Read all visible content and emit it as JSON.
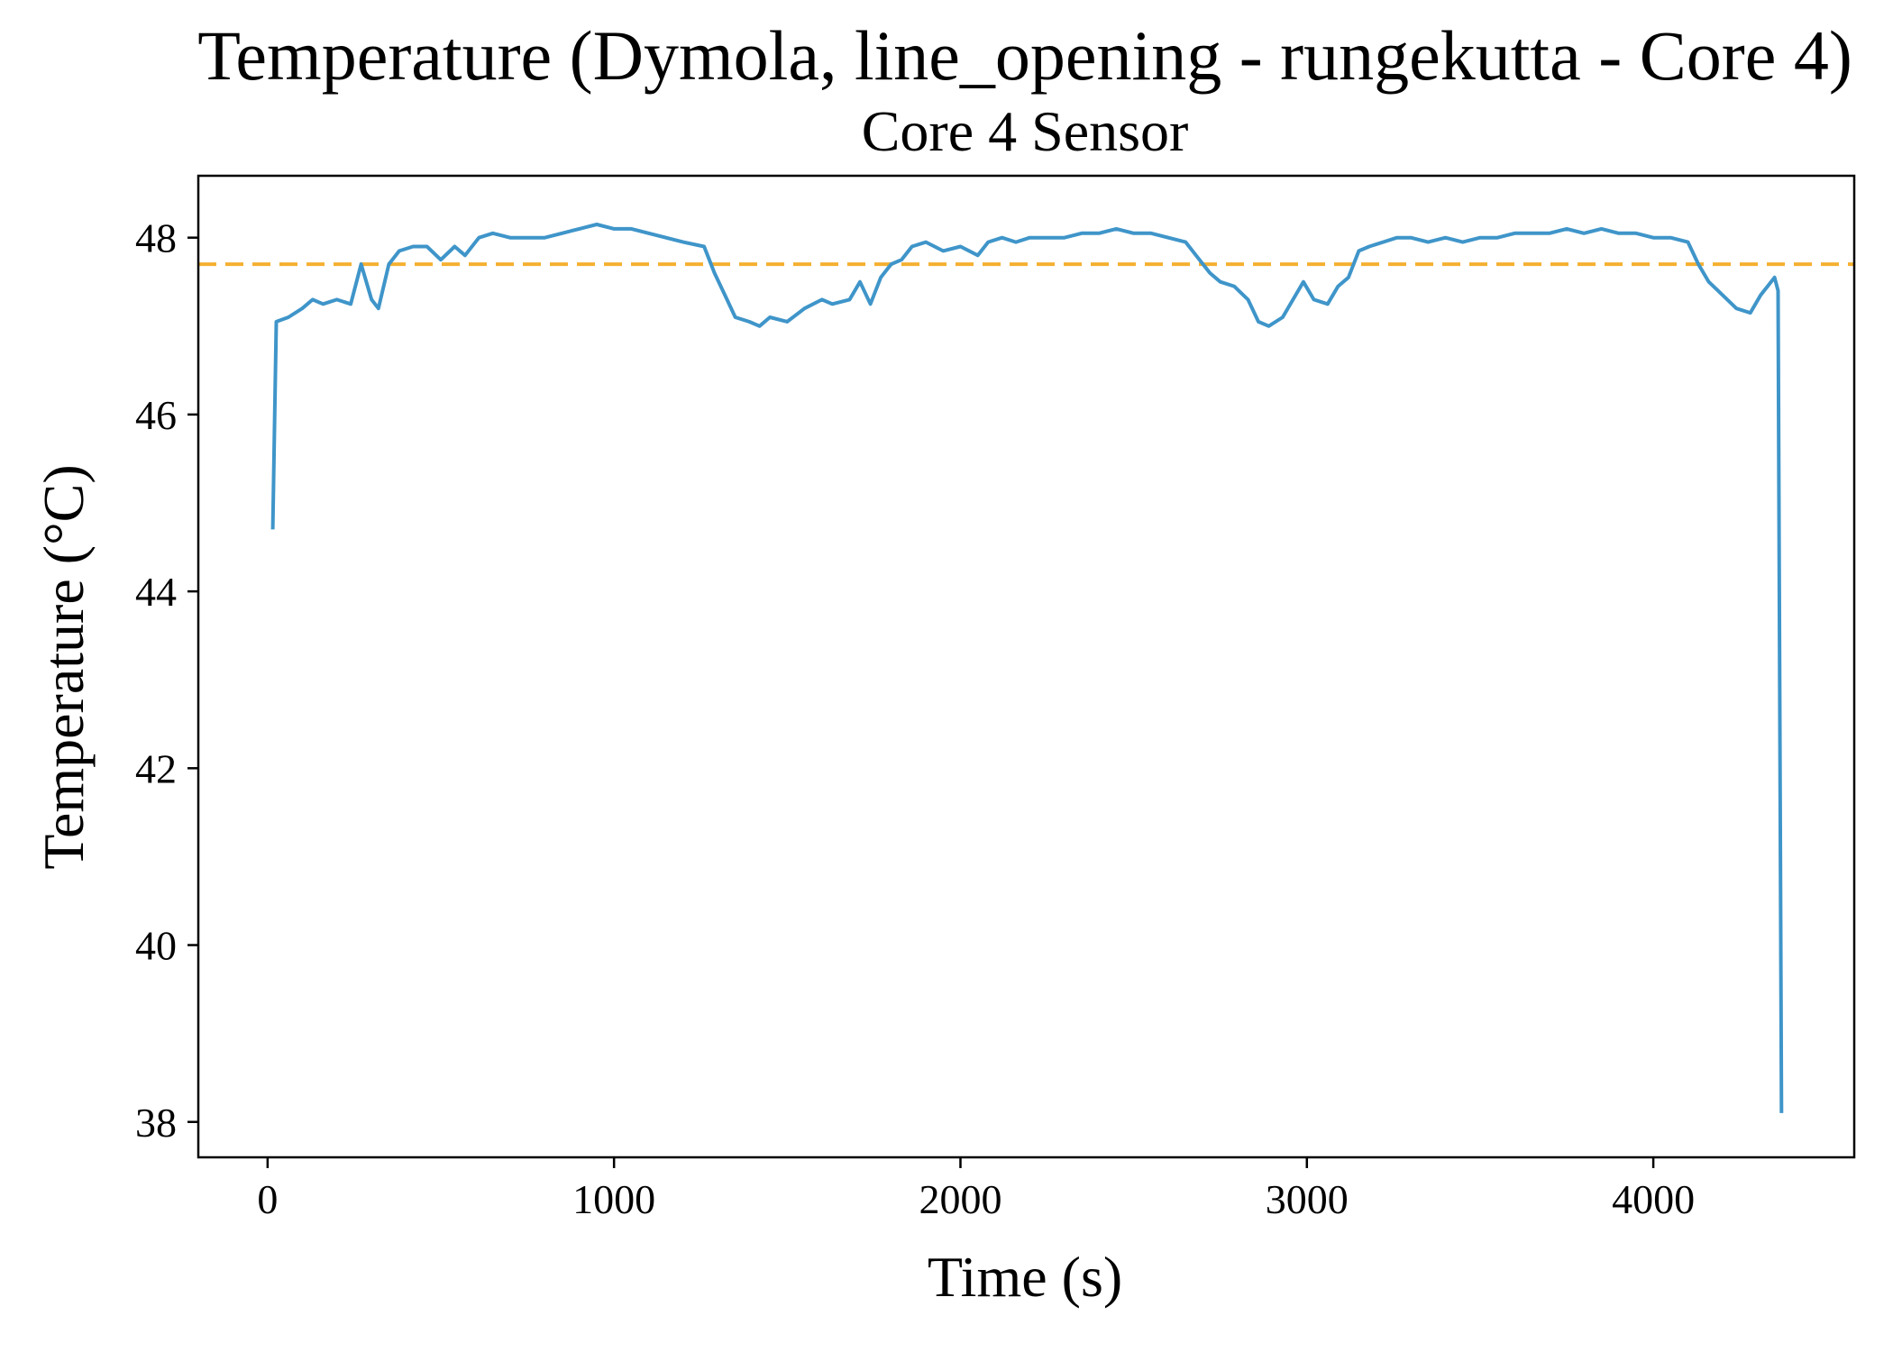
{
  "chart_data": {
    "type": "line",
    "title": "Temperature (Dymola, line_opening - rungekutta - Core 4)",
    "subtitle": "Core 4 Sensor",
    "xlabel": "Time (s)",
    "ylabel": "Temperature (°C)",
    "xlim": [
      -200,
      4580
    ],
    "ylim": [
      37.6,
      48.7
    ],
    "xticks": [
      0,
      1000,
      2000,
      3000,
      4000
    ],
    "xtick_labels": [
      "0",
      "1000",
      "2000",
      "3000",
      "4000"
    ],
    "yticks": [
      38,
      40,
      42,
      44,
      46,
      48
    ],
    "ytick_labels": [
      "38",
      "40",
      "42",
      "44",
      "46",
      "48"
    ],
    "grid": false,
    "reference_line": {
      "y": 47.7,
      "color": "#f5b031",
      "style": "dashed"
    },
    "series": [
      {
        "color": "#3f95c9",
        "points": [
          [
            15,
            44.7
          ],
          [
            25,
            47.05
          ],
          [
            60,
            47.1
          ],
          [
            100,
            47.2
          ],
          [
            130,
            47.3
          ],
          [
            160,
            47.25
          ],
          [
            200,
            47.3
          ],
          [
            240,
            47.25
          ],
          [
            270,
            47.7
          ],
          [
            300,
            47.3
          ],
          [
            320,
            47.2
          ],
          [
            350,
            47.7
          ],
          [
            380,
            47.85
          ],
          [
            420,
            47.9
          ],
          [
            460,
            47.9
          ],
          [
            500,
            47.75
          ],
          [
            540,
            47.9
          ],
          [
            570,
            47.8
          ],
          [
            610,
            48.0
          ],
          [
            650,
            48.05
          ],
          [
            700,
            48.0
          ],
          [
            750,
            48.0
          ],
          [
            800,
            48.0
          ],
          [
            850,
            48.05
          ],
          [
            900,
            48.1
          ],
          [
            950,
            48.15
          ],
          [
            1000,
            48.1
          ],
          [
            1050,
            48.1
          ],
          [
            1100,
            48.05
          ],
          [
            1150,
            48.0
          ],
          [
            1200,
            47.95
          ],
          [
            1260,
            47.9
          ],
          [
            1290,
            47.6
          ],
          [
            1320,
            47.35
          ],
          [
            1350,
            47.1
          ],
          [
            1390,
            47.05
          ],
          [
            1420,
            47.0
          ],
          [
            1450,
            47.1
          ],
          [
            1500,
            47.05
          ],
          [
            1550,
            47.2
          ],
          [
            1600,
            47.3
          ],
          [
            1630,
            47.25
          ],
          [
            1680,
            47.3
          ],
          [
            1710,
            47.5
          ],
          [
            1740,
            47.25
          ],
          [
            1770,
            47.55
          ],
          [
            1800,
            47.7
          ],
          [
            1830,
            47.75
          ],
          [
            1860,
            47.9
          ],
          [
            1900,
            47.95
          ],
          [
            1950,
            47.85
          ],
          [
            2000,
            47.9
          ],
          [
            2050,
            47.8
          ],
          [
            2080,
            47.95
          ],
          [
            2120,
            48.0
          ],
          [
            2160,
            47.95
          ],
          [
            2200,
            48.0
          ],
          [
            2250,
            48.0
          ],
          [
            2300,
            48.0
          ],
          [
            2350,
            48.05
          ],
          [
            2400,
            48.05
          ],
          [
            2450,
            48.1
          ],
          [
            2500,
            48.05
          ],
          [
            2550,
            48.05
          ],
          [
            2600,
            48.0
          ],
          [
            2650,
            47.95
          ],
          [
            2680,
            47.8
          ],
          [
            2720,
            47.6
          ],
          [
            2750,
            47.5
          ],
          [
            2790,
            47.45
          ],
          [
            2830,
            47.3
          ],
          [
            2860,
            47.05
          ],
          [
            2890,
            47.0
          ],
          [
            2930,
            47.1
          ],
          [
            2960,
            47.3
          ],
          [
            2990,
            47.5
          ],
          [
            3020,
            47.3
          ],
          [
            3060,
            47.25
          ],
          [
            3090,
            47.45
          ],
          [
            3120,
            47.55
          ],
          [
            3150,
            47.85
          ],
          [
            3180,
            47.9
          ],
          [
            3220,
            47.95
          ],
          [
            3260,
            48.0
          ],
          [
            3300,
            48.0
          ],
          [
            3350,
            47.95
          ],
          [
            3400,
            48.0
          ],
          [
            3450,
            47.95
          ],
          [
            3500,
            48.0
          ],
          [
            3550,
            48.0
          ],
          [
            3600,
            48.05
          ],
          [
            3650,
            48.05
          ],
          [
            3700,
            48.05
          ],
          [
            3750,
            48.1
          ],
          [
            3800,
            48.05
          ],
          [
            3850,
            48.1
          ],
          [
            3900,
            48.05
          ],
          [
            3950,
            48.05
          ],
          [
            4000,
            48.0
          ],
          [
            4050,
            48.0
          ],
          [
            4100,
            47.95
          ],
          [
            4130,
            47.7
          ],
          [
            4160,
            47.5
          ],
          [
            4200,
            47.35
          ],
          [
            4240,
            47.2
          ],
          [
            4280,
            47.15
          ],
          [
            4310,
            47.35
          ],
          [
            4330,
            47.45
          ],
          [
            4350,
            47.55
          ],
          [
            4360,
            47.4
          ],
          [
            4370,
            38.1
          ]
        ]
      }
    ]
  }
}
